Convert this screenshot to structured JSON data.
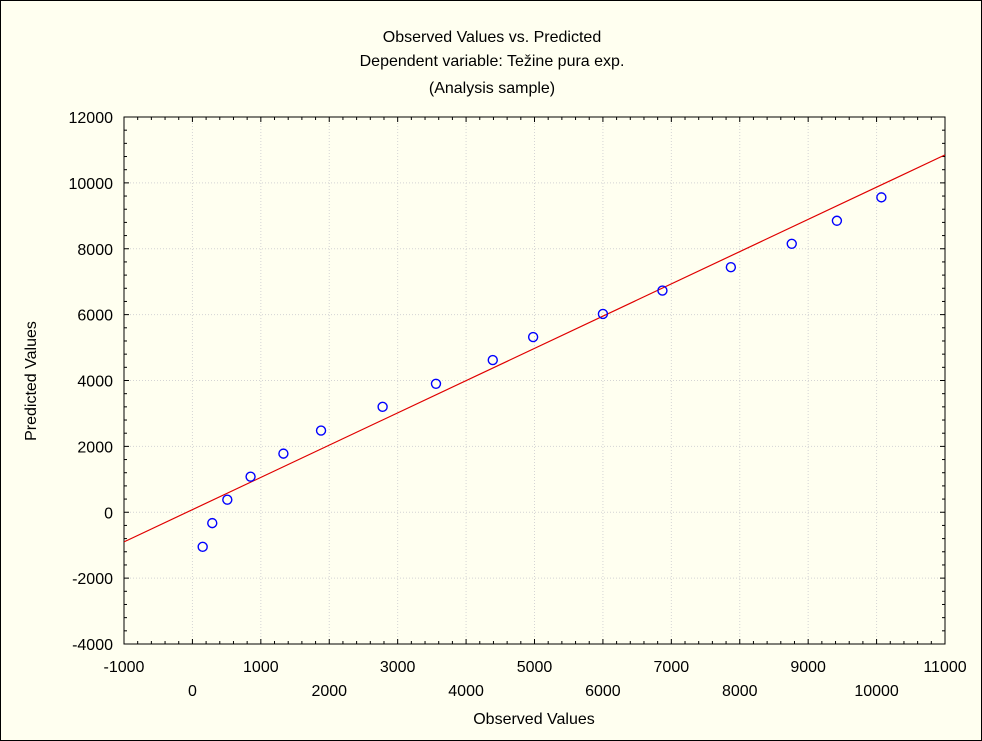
{
  "chart_data": {
    "type": "scatter",
    "title": "Observed Values vs. Predicted",
    "subtitle": "Dependent variable: Težine pura exp.",
    "subtitle2": "(Analysis sample)",
    "xlabel": "Observed Values",
    "ylabel": "Predicted Values",
    "xlim": [
      -1000,
      11000
    ],
    "ylim": [
      -4000,
      12000
    ],
    "x_ticks_row1": [
      "-1000",
      "1000",
      "3000",
      "5000",
      "7000",
      "9000",
      "11000"
    ],
    "x_ticks_row1_values": [
      -1000,
      1000,
      3000,
      5000,
      7000,
      9000,
      11000
    ],
    "x_ticks_row2": [
      "0",
      "2000",
      "4000",
      "6000",
      "8000",
      "10000"
    ],
    "x_ticks_row2_values": [
      0,
      2000,
      4000,
      6000,
      8000,
      10000
    ],
    "y_ticks": [
      "-4000",
      "-2000",
      "0",
      "2000",
      "4000",
      "6000",
      "8000",
      "10000",
      "12000"
    ],
    "y_ticks_values": [
      -4000,
      -2000,
      0,
      2000,
      4000,
      6000,
      8000,
      10000,
      12000
    ],
    "grid": true,
    "points": {
      "x": [
        150,
        290,
        510,
        850,
        1330,
        1880,
        2780,
        3560,
        4390,
        4980,
        6000,
        6870,
        7870,
        8760,
        9420,
        10070
      ],
      "y": [
        -1050,
        -330,
        380,
        1080,
        1780,
        2480,
        3200,
        3900,
        4620,
        5320,
        6020,
        6730,
        7440,
        8150,
        8850,
        9560
      ]
    },
    "fit_line": {
      "x": [
        -1000,
        11000
      ],
      "y": [
        -900,
        10850
      ]
    },
    "colors": {
      "points": "#0000ff",
      "fit_line": "#e00000",
      "grid": "#d4d4d4",
      "background": "#fffff0"
    }
  }
}
